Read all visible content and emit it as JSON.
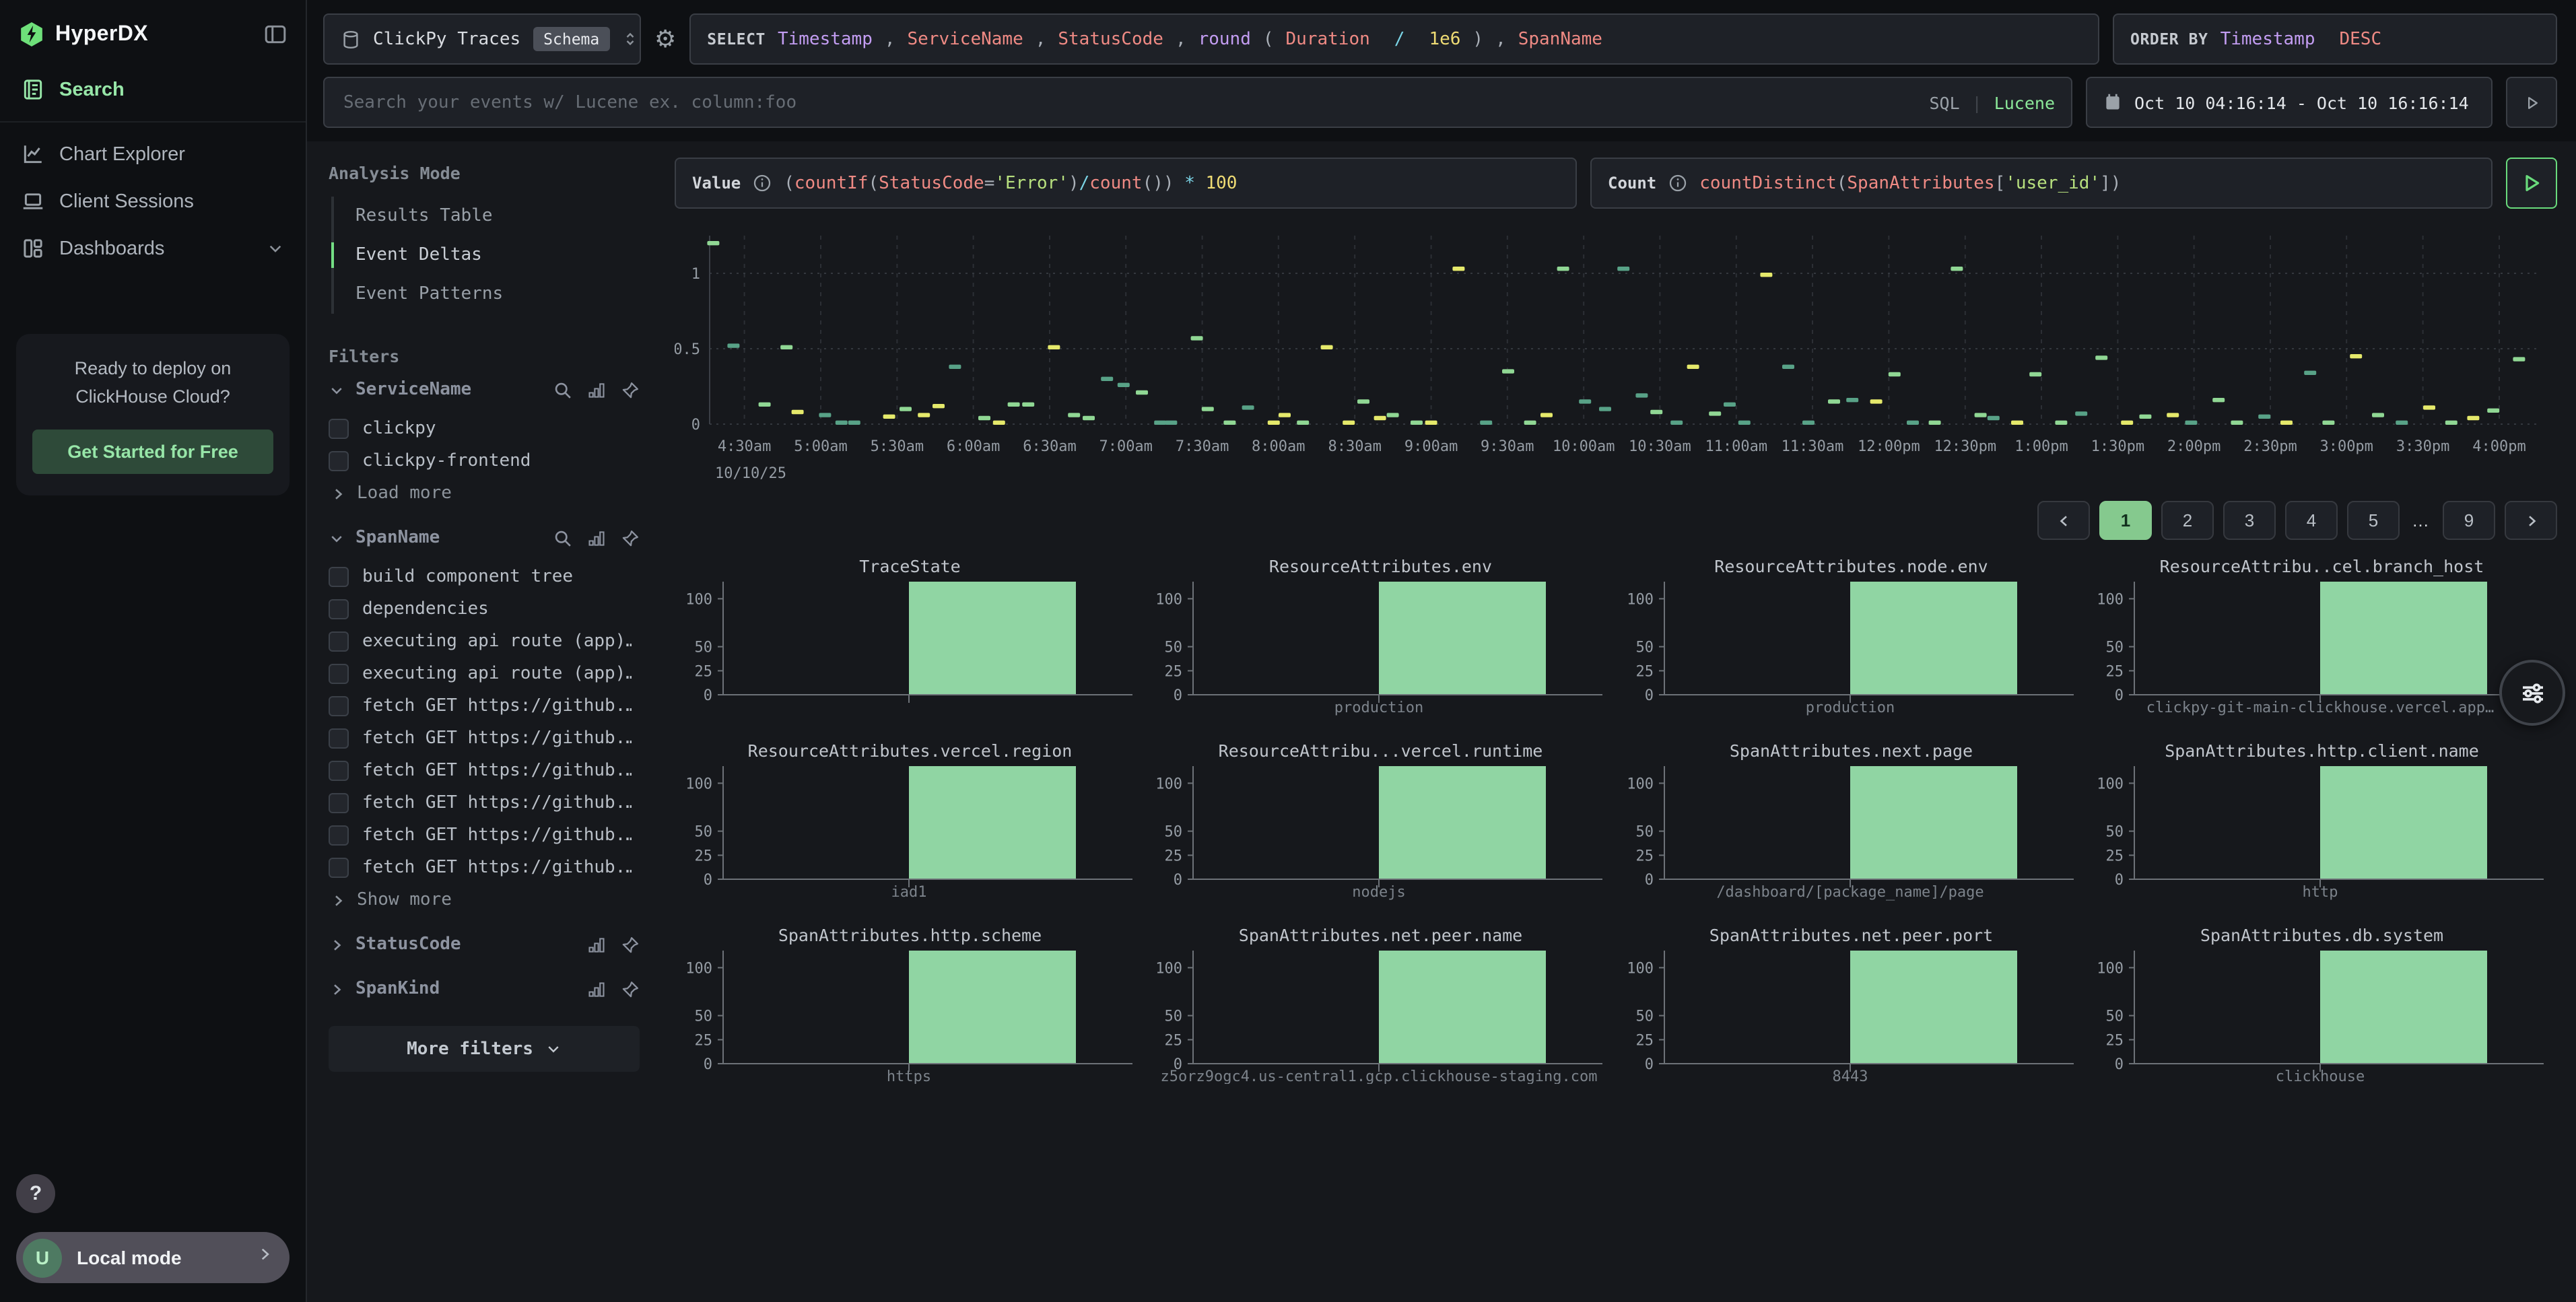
{
  "sidebar": {
    "logo_text": "HyperDX",
    "nav": [
      {
        "label": "Search"
      },
      {
        "label": "Chart Explorer"
      },
      {
        "label": "Client Sessions"
      },
      {
        "label": "Dashboards"
      }
    ],
    "promo": {
      "text_line1": "Ready to deploy on",
      "text_line2": "ClickHouse Cloud?",
      "cta": "Get Started for Free"
    },
    "help_label": "?",
    "local_mode": {
      "avatar": "U",
      "label": "Local mode"
    }
  },
  "topbar": {
    "source": {
      "name": "ClickPy Traces",
      "badge": "Schema"
    },
    "select_tokens": [
      {
        "t": "SELECT ",
        "c": "kw"
      },
      {
        "t": "Timestamp",
        "c": "col"
      },
      {
        "t": ", ",
        "c": "p"
      },
      {
        "t": "ServiceName",
        "c": "fld"
      },
      {
        "t": ", ",
        "c": "p"
      },
      {
        "t": "StatusCode",
        "c": "fld"
      },
      {
        "t": ", ",
        "c": "p"
      },
      {
        "t": "round",
        "c": "col"
      },
      {
        "t": "(",
        "c": "p"
      },
      {
        "t": "Duration",
        "c": "fld"
      },
      {
        "t": " ",
        "c": "p"
      },
      {
        "t": "/",
        "c": "op"
      },
      {
        "t": " ",
        "c": "p"
      },
      {
        "t": "1e6",
        "c": "num"
      },
      {
        "t": ")",
        "c": "p"
      },
      {
        "t": ", ",
        "c": "p"
      },
      {
        "t": "SpanName",
        "c": "fld"
      }
    ],
    "orderby_tokens": [
      {
        "t": "ORDER BY ",
        "c": "kw"
      },
      {
        "t": "Timestamp",
        "c": "col"
      },
      {
        "t": " ",
        "c": "p"
      },
      {
        "t": "DESC",
        "c": "fld"
      }
    ],
    "search": {
      "placeholder": "Search your events w/ Lucene ex. column:foo",
      "sql_label": "SQL",
      "divider": "|",
      "lucene_label": "Lucene"
    },
    "daterange": "Oct 10 04:16:14 - Oct 10 16:16:14"
  },
  "filters_panel": {
    "analysis_mode_title": "Analysis Mode",
    "analysis_modes": [
      {
        "label": "Results Table",
        "active": false
      },
      {
        "label": "Event Deltas",
        "active": true
      },
      {
        "label": "Event Patterns",
        "active": false
      }
    ],
    "filters_title": "Filters",
    "groups": [
      {
        "name": "ServiceName",
        "expanded": true,
        "icons": [
          "search",
          "bars",
          "pin"
        ],
        "items": [
          "clickpy",
          "clickpy-frontend"
        ],
        "more_label": "Load more"
      },
      {
        "name": "SpanName",
        "expanded": true,
        "icons": [
          "search",
          "bars",
          "pin"
        ],
        "items": [
          "build component tree",
          "dependencies",
          "executing api route (app)…",
          "executing api route (app)…",
          "fetch GET https://github.…",
          "fetch GET https://github.…",
          "fetch GET https://github.…",
          "fetch GET https://github.…",
          "fetch GET https://github.…",
          "fetch GET https://github.…"
        ],
        "more_label": "Show more"
      },
      {
        "name": "StatusCode",
        "expanded": false,
        "icons": [
          "bars",
          "pin"
        ],
        "items": [],
        "more_label": ""
      },
      {
        "name": "SpanKind",
        "expanded": false,
        "icons": [
          "bars",
          "pin"
        ],
        "items": [],
        "more_label": ""
      }
    ],
    "more_filters_label": "More filters"
  },
  "exprs": {
    "value_label": "Value",
    "value_tokens": [
      {
        "t": "(",
        "c": "p"
      },
      {
        "t": "countIf",
        "c": "fld"
      },
      {
        "t": "(",
        "c": "p"
      },
      {
        "t": "StatusCode",
        "c": "fld"
      },
      {
        "t": "=",
        "c": "p"
      },
      {
        "t": "'Error'",
        "c": "str"
      },
      {
        "t": ")",
        "c": "p"
      },
      {
        "t": "/",
        "c": "op"
      },
      {
        "t": "count",
        "c": "fld"
      },
      {
        "t": "()",
        "c": "p"
      },
      {
        "t": ")",
        "c": "p"
      },
      {
        "t": " ",
        "c": "p"
      },
      {
        "t": "*",
        "c": "op"
      },
      {
        "t": " ",
        "c": "p"
      },
      {
        "t": "100",
        "c": "num"
      }
    ],
    "count_label": "Count",
    "count_tokens": [
      {
        "t": "countDistinct",
        "c": "fld"
      },
      {
        "t": "(",
        "c": "p"
      },
      {
        "t": "SpanAttributes",
        "c": "fld"
      },
      {
        "t": "[",
        "c": "p"
      },
      {
        "t": "'user_id'",
        "c": "str"
      },
      {
        "t": "]",
        "c": "p"
      },
      {
        "t": ")",
        "c": "p"
      }
    ]
  },
  "pagination": {
    "prev": "‹",
    "pages": [
      "1",
      "2",
      "3",
      "4",
      "5",
      "…",
      "9"
    ],
    "active": "1",
    "next": "›"
  },
  "chart_data": {
    "main": {
      "type": "scatter",
      "title": "Event Deltas (error % vs distinct users) over time",
      "xlabel": "",
      "ylabel": "",
      "x_labels": [
        "4:30am",
        "5:00am",
        "5:30am",
        "6:00am",
        "6:30am",
        "7:00am",
        "7:30am",
        "8:00am",
        "8:30am",
        "9:00am",
        "9:30am",
        "10:00am",
        "10:30am",
        "11:00am",
        "11:30am",
        "12:00pm",
        "12:30pm",
        "1:00pm",
        "1:30pm",
        "2:00pm",
        "2:30pm",
        "3:00pm",
        "3:30pm",
        "4:00pm"
      ],
      "date_label": "10/10/25",
      "y_ticks": [
        0,
        0.5,
        1
      ],
      "ylim": [
        0,
        1.25
      ],
      "legend": "none",
      "grid": "dashed-vertical, dotted-horizontal",
      "colors": {
        "y": "#e5e96b",
        "g": "#90d794",
        "t": "#58a287"
      },
      "points": [
        [
          0.002,
          1.2,
          "g"
        ],
        [
          0.013,
          0.52,
          "t"
        ],
        [
          0.03,
          0.13,
          "g"
        ],
        [
          0.042,
          0.51,
          "g"
        ],
        [
          0.048,
          0.08,
          "y"
        ],
        [
          0.063,
          0.06,
          "t"
        ],
        [
          0.072,
          0.01,
          "t"
        ],
        [
          0.079,
          0.01,
          "t"
        ],
        [
          0.098,
          0.05,
          "y"
        ],
        [
          0.107,
          0.1,
          "g"
        ],
        [
          0.117,
          0.06,
          "y"
        ],
        [
          0.125,
          0.12,
          "y"
        ],
        [
          0.134,
          0.38,
          "t"
        ],
        [
          0.15,
          0.04,
          "g"
        ],
        [
          0.158,
          0.01,
          "y"
        ],
        [
          0.166,
          0.13,
          "g"
        ],
        [
          0.174,
          0.13,
          "g"
        ],
        [
          0.188,
          0.51,
          "y"
        ],
        [
          0.199,
          0.06,
          "g"
        ],
        [
          0.207,
          0.04,
          "g"
        ],
        [
          0.217,
          0.3,
          "t"
        ],
        [
          0.226,
          0.26,
          "t"
        ],
        [
          0.236,
          0.21,
          "g"
        ],
        [
          0.246,
          0.01,
          "t"
        ],
        [
          0.252,
          0.01,
          "t"
        ],
        [
          0.266,
          0.57,
          "g"
        ],
        [
          0.272,
          0.1,
          "g"
        ],
        [
          0.284,
          0.01,
          "g"
        ],
        [
          0.294,
          0.11,
          "t"
        ],
        [
          0.308,
          0.01,
          "y"
        ],
        [
          0.314,
          0.06,
          "y"
        ],
        [
          0.324,
          0.01,
          "g"
        ],
        [
          0.337,
          0.51,
          "y"
        ],
        [
          0.349,
          0.01,
          "y"
        ],
        [
          0.357,
          0.15,
          "g"
        ],
        [
          0.366,
          0.04,
          "y"
        ],
        [
          0.373,
          0.06,
          "g"
        ],
        [
          0.386,
          0.01,
          "g"
        ],
        [
          0.394,
          0.01,
          "y"
        ],
        [
          0.409,
          1.03,
          "y"
        ],
        [
          0.424,
          0.01,
          "t"
        ],
        [
          0.436,
          0.35,
          "g"
        ],
        [
          0.448,
          0.01,
          "g"
        ],
        [
          0.457,
          0.06,
          "y"
        ],
        [
          0.466,
          1.03,
          "g"
        ],
        [
          0.478,
          0.15,
          "t"
        ],
        [
          0.489,
          0.1,
          "t"
        ],
        [
          0.499,
          1.03,
          "t"
        ],
        [
          0.509,
          0.19,
          "t"
        ],
        [
          0.517,
          0.08,
          "g"
        ],
        [
          0.528,
          0.01,
          "t"
        ],
        [
          0.537,
          0.38,
          "y"
        ],
        [
          0.549,
          0.07,
          "g"
        ],
        [
          0.557,
          0.13,
          "t"
        ],
        [
          0.565,
          0.01,
          "t"
        ],
        [
          0.577,
          0.99,
          "y"
        ],
        [
          0.589,
          0.38,
          "t"
        ],
        [
          0.6,
          0.01,
          "t"
        ],
        [
          0.614,
          0.15,
          "g"
        ],
        [
          0.624,
          0.16,
          "t"
        ],
        [
          0.637,
          0.15,
          "y"
        ],
        [
          0.647,
          0.33,
          "g"
        ],
        [
          0.657,
          0.01,
          "t"
        ],
        [
          0.669,
          0.01,
          "g"
        ],
        [
          0.681,
          1.03,
          "g"
        ],
        [
          0.694,
          0.06,
          "g"
        ],
        [
          0.701,
          0.04,
          "t"
        ],
        [
          0.714,
          0.01,
          "y"
        ],
        [
          0.724,
          0.33,
          "g"
        ],
        [
          0.738,
          0.01,
          "g"
        ],
        [
          0.749,
          0.07,
          "t"
        ],
        [
          0.76,
          0.44,
          "g"
        ],
        [
          0.774,
          0.01,
          "y"
        ],
        [
          0.784,
          0.05,
          "g"
        ],
        [
          0.799,
          0.06,
          "y"
        ],
        [
          0.809,
          0.01,
          "t"
        ],
        [
          0.824,
          0.16,
          "g"
        ],
        [
          0.834,
          0.01,
          "g"
        ],
        [
          0.849,
          0.05,
          "t"
        ],
        [
          0.861,
          0.01,
          "y"
        ],
        [
          0.874,
          0.34,
          "t"
        ],
        [
          0.884,
          0.01,
          "g"
        ],
        [
          0.899,
          0.45,
          "y"
        ],
        [
          0.911,
          0.06,
          "g"
        ],
        [
          0.924,
          0.01,
          "t"
        ],
        [
          0.939,
          0.11,
          "y"
        ],
        [
          0.951,
          0.01,
          "g"
        ],
        [
          0.963,
          0.04,
          "y"
        ],
        [
          0.974,
          0.09,
          "g"
        ],
        [
          0.988,
          0.43,
          "g"
        ]
      ]
    },
    "minicharts": {
      "type": "bar",
      "y_ticks": [
        0,
        25,
        50,
        100
      ],
      "ylim": [
        0,
        115
      ],
      "bar_value": 100,
      "bar_color": "#90d5a3",
      "charts": [
        {
          "title": "TraceState",
          "category": ""
        },
        {
          "title": "ResourceAttributes.env",
          "category": "production"
        },
        {
          "title": "ResourceAttributes.node.env",
          "category": "production"
        },
        {
          "title": "ResourceAttribu..cel.branch_host",
          "category": "clickpy-git-main-clickhouse.vercel.app…"
        },
        {
          "title": "ResourceAttributes.vercel.region",
          "category": "iad1"
        },
        {
          "title": "ResourceAttribu...vercel.runtime",
          "category": "nodejs"
        },
        {
          "title": "SpanAttributes.next.page",
          "category": "/dashboard/[package_name]/page"
        },
        {
          "title": "SpanAttributes.http.client.name",
          "category": "http"
        },
        {
          "title": "SpanAttributes.http.scheme",
          "category": "https"
        },
        {
          "title": "SpanAttributes.net.peer.name",
          "category": "z5orz9ogc4.us-central1.gcp.clickhouse-staging.com"
        },
        {
          "title": "SpanAttributes.net.peer.port",
          "category": "8443"
        },
        {
          "title": "SpanAttributes.db.system",
          "category": "clickhouse"
        }
      ]
    }
  }
}
